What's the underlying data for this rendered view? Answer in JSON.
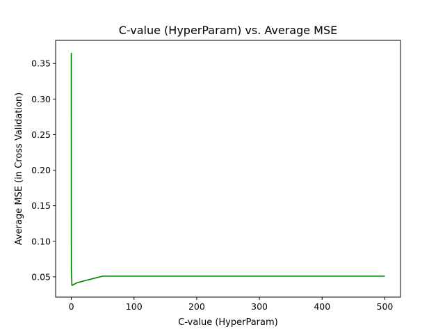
{
  "chart_data": {
    "type": "line",
    "title": "C-value (HyperParam) vs. Average MSE",
    "xlabel": "C-value (HyperParam)",
    "ylabel": "Average MSE (in Cross Validation)",
    "xlim": [
      -25,
      525
    ],
    "ylim": [
      0.0215,
      0.3825
    ],
    "xticks": [
      0,
      100,
      200,
      300,
      400,
      500
    ],
    "xtick_labels": [
      "0",
      "100",
      "200",
      "300",
      "400",
      "500"
    ],
    "yticks": [
      0.05,
      0.1,
      0.15,
      0.2,
      0.25,
      0.3,
      0.35
    ],
    "ytick_labels": [
      "0.05",
      "0.10",
      "0.15",
      "0.20",
      "0.25",
      "0.30",
      "0.35"
    ],
    "grid": false,
    "series": [
      {
        "color": "#008000",
        "x": [
          0.0001,
          0.001,
          0.01,
          0.1,
          1,
          10,
          50,
          100,
          500
        ],
        "y": [
          0.365,
          0.36,
          0.3,
          0.06,
          0.038,
          0.042,
          0.051,
          0.051,
          0.051
        ]
      }
    ]
  }
}
